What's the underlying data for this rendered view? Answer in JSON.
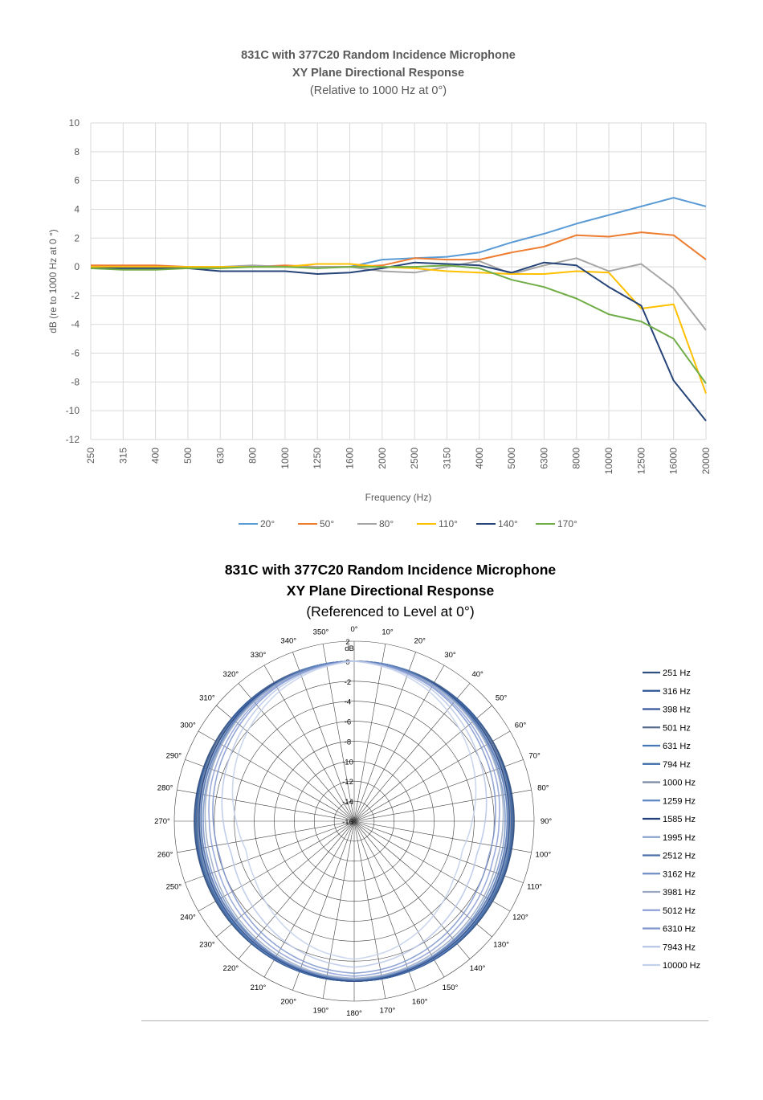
{
  "chart_data": [
    {
      "type": "line",
      "title": "831C with 377C20 Random Incidence Microphone",
      "subtitle": "XY Plane Directional Response",
      "subtitle2": "(Relative to 1000 Hz at 0°)",
      "xlabel": "Frequency (Hz)",
      "ylabel": "dB (re to 1000 Hz at 0 °)",
      "ylim": [
        -12,
        10
      ],
      "yticks": [
        "10",
        "8",
        "6",
        "4",
        "2",
        "0",
        "-2",
        "-4",
        "-6",
        "-8",
        "-10",
        "-12"
      ],
      "grid": true,
      "legend_position": "bottom",
      "categories": [
        "250",
        "315",
        "400",
        "500",
        "630",
        "800",
        "1000",
        "1250",
        "1600",
        "2000",
        "2500",
        "3150",
        "4000",
        "5000",
        "6300",
        "8000",
        "10000",
        "12500",
        "16000",
        "20000"
      ],
      "series": [
        {
          "name": "20°",
          "color": "#5b9bd5",
          "values": [
            0.0,
            0.0,
            0.0,
            0.0,
            0.0,
            0.0,
            0.0,
            0.0,
            0.0,
            0.5,
            0.6,
            0.7,
            1.0,
            1.7,
            2.3,
            3.0,
            3.6,
            4.2,
            4.8,
            4.2
          ]
        },
        {
          "name": "50°",
          "color": "#ed7d31",
          "values": [
            0.1,
            0.1,
            0.1,
            0.0,
            0.0,
            0.0,
            0.1,
            0.0,
            0.0,
            0.1,
            0.6,
            0.5,
            0.5,
            1.0,
            1.4,
            2.2,
            2.1,
            2.4,
            2.2,
            0.5
          ]
        },
        {
          "name": "80°",
          "color": "#a5a5a5",
          "values": [
            0.0,
            0.0,
            0.0,
            0.0,
            0.0,
            0.1,
            0.0,
            0.0,
            0.0,
            -0.3,
            -0.4,
            0.0,
            0.4,
            -0.5,
            0.1,
            0.6,
            -0.3,
            0.2,
            -1.5,
            -4.4
          ]
        },
        {
          "name": "110°",
          "color": "#ffc000",
          "values": [
            0.0,
            0.0,
            0.0,
            0.0,
            0.0,
            0.0,
            0.0,
            0.2,
            0.2,
            0.0,
            -0.1,
            -0.3,
            -0.4,
            -0.5,
            -0.5,
            -0.3,
            -0.4,
            -2.9,
            -2.6,
            -8.8
          ]
        },
        {
          "name": "140°",
          "color": "#264478",
          "values": [
            -0.1,
            -0.1,
            -0.1,
            -0.1,
            -0.3,
            -0.3,
            -0.3,
            -0.5,
            -0.4,
            -0.1,
            0.3,
            0.2,
            0.1,
            -0.4,
            0.3,
            0.1,
            -1.4,
            -2.7,
            -7.9,
            -10.7
          ]
        },
        {
          "name": "170°",
          "color": "#70ad47",
          "values": [
            -0.1,
            -0.2,
            -0.2,
            -0.1,
            -0.1,
            0.0,
            0.0,
            -0.1,
            0.0,
            0.0,
            0.0,
            0.1,
            -0.1,
            -0.9,
            -1.4,
            -2.2,
            -3.3,
            -3.8,
            -5.0,
            -8.1
          ]
        }
      ]
    },
    {
      "type": "polar",
      "title": "831C with 377C20 Random Incidence Microphone",
      "subtitle": "XY Plane Directional Response",
      "subtitle2": "(Referenced to Level at 0°)",
      "radial_unit": "dB",
      "rlim": [
        -16,
        2
      ],
      "radial_ticks": [
        "2",
        "0",
        "-2",
        "-4",
        "-6",
        "-8",
        "-10",
        "-12",
        "-14",
        "-16"
      ],
      "angle_labels": [
        "0°",
        "10°",
        "20°",
        "30°",
        "40°",
        "50°",
        "60°",
        "70°",
        "80°",
        "90°",
        "100°",
        "110°",
        "120°",
        "130°",
        "140°",
        "150°",
        "160°",
        "170°",
        "180°",
        "190°",
        "200°",
        "210°",
        "220°",
        "230°",
        "240°",
        "250°",
        "260°",
        "270°",
        "280°",
        "290°",
        "300°",
        "310°",
        "320°",
        "330°",
        "340°",
        "350°"
      ],
      "grid": true,
      "legend_position": "right",
      "series": [
        {
          "name": "251 Hz",
          "color": "#2f4f7f",
          "anchors": [
            0,
            0,
            0,
            0,
            0,
            0,
            0,
            0,
            0,
            0,
            0,
            0,
            0
          ]
        },
        {
          "name": "316 Hz",
          "color": "#2e5597",
          "anchors": [
            0,
            0,
            0,
            0,
            -0.1,
            -0.1,
            -0.1,
            -0.1,
            -0.1,
            -0.1,
            -0.1,
            0,
            0
          ]
        },
        {
          "name": "398 Hz",
          "color": "#34589a",
          "anchors": [
            0,
            0,
            0,
            0,
            -0.1,
            -0.1,
            -0.2,
            -0.1,
            -0.1,
            -0.1,
            0,
            0,
            0
          ]
        },
        {
          "name": "501 Hz",
          "color": "#5a6f8f",
          "anchors": [
            0,
            0,
            0,
            -0.1,
            -0.1,
            -0.2,
            -0.2,
            -0.2,
            -0.1,
            -0.1,
            -0.1,
            0,
            0
          ]
        },
        {
          "name": "631 Hz",
          "color": "#4a78b6",
          "anchors": [
            0,
            0,
            -0.1,
            -0.1,
            -0.2,
            -0.2,
            -0.3,
            -0.2,
            -0.2,
            -0.1,
            -0.1,
            0,
            0
          ]
        },
        {
          "name": "794 Hz",
          "color": "#3c6aa8",
          "anchors": [
            0,
            0,
            -0.1,
            -0.1,
            -0.2,
            -0.3,
            -0.3,
            -0.3,
            -0.2,
            -0.1,
            -0.1,
            0,
            0
          ]
        },
        {
          "name": "1000 Hz",
          "color": "#7b8aa3",
          "anchors": [
            0,
            0,
            -0.1,
            -0.2,
            -0.2,
            -0.3,
            -0.4,
            -0.3,
            -0.3,
            -0.2,
            -0.1,
            -0.1,
            0
          ]
        },
        {
          "name": "1259 Hz",
          "color": "#5b84c4",
          "anchors": [
            0,
            0,
            -0.1,
            -0.2,
            -0.3,
            -0.4,
            -0.5,
            -0.4,
            -0.3,
            -0.2,
            -0.1,
            -0.1,
            0
          ]
        },
        {
          "name": "1585 Hz",
          "color": "#23407a",
          "anchors": [
            0,
            -0.1,
            -0.1,
            -0.2,
            -0.3,
            -0.4,
            -0.5,
            -0.5,
            -0.4,
            -0.3,
            -0.2,
            -0.1,
            0
          ]
        },
        {
          "name": "1995 Hz",
          "color": "#8aa3cc",
          "anchors": [
            0,
            -0.1,
            -0.2,
            -0.3,
            -0.4,
            -0.5,
            -0.6,
            -0.6,
            -0.5,
            -0.4,
            -0.3,
            -0.2,
            -0.1
          ]
        },
        {
          "name": "2512 Hz",
          "color": "#4d6fab",
          "anchors": [
            0,
            -0.1,
            -0.2,
            -0.3,
            -0.5,
            -0.6,
            -0.7,
            -0.7,
            -0.6,
            -0.5,
            -0.3,
            -0.2,
            -0.1
          ]
        },
        {
          "name": "3162 Hz",
          "color": "#6f8ec4",
          "anchors": [
            0,
            -0.1,
            -0.2,
            -0.4,
            -0.6,
            -0.8,
            -0.9,
            -0.9,
            -0.8,
            -0.6,
            -0.4,
            -0.3,
            -0.2
          ]
        },
        {
          "name": "3981 Hz",
          "color": "#9aa9c2",
          "anchors": [
            0,
            -0.2,
            -0.3,
            -0.5,
            -0.7,
            -0.9,
            -1.1,
            -1.2,
            -1.0,
            -0.8,
            -0.6,
            -0.4,
            -0.3
          ]
        },
        {
          "name": "5012 Hz",
          "color": "#8c9fd6",
          "anchors": [
            0,
            -0.2,
            -0.4,
            -0.7,
            -1.0,
            -1.2,
            -1.5,
            -1.6,
            -1.4,
            -1.2,
            -0.9,
            -0.7,
            -0.5
          ]
        },
        {
          "name": "6310 Hz",
          "color": "#7f97cf",
          "anchors": [
            0,
            -0.2,
            -0.5,
            -0.9,
            -1.3,
            -1.6,
            -1.9,
            -2.1,
            -1.9,
            -1.6,
            -1.3,
            -1.0,
            -0.8
          ]
        },
        {
          "name": "7943 Hz",
          "color": "#b7c6e6",
          "anchors": [
            0,
            -0.3,
            -0.7,
            -1.3,
            -1.9,
            -2.4,
            -2.9,
            -3.3,
            -3.0,
            -2.6,
            -2.1,
            -1.7,
            -1.4
          ]
        },
        {
          "name": "10000 Hz",
          "color": "#c3d0ea",
          "anchors": [
            0,
            -0.4,
            -1.0,
            -1.8,
            -2.6,
            -3.4,
            -4.2,
            -4.8,
            -4.5,
            -3.9,
            -3.2,
            -2.6,
            -2.2
          ]
        }
      ]
    }
  ]
}
